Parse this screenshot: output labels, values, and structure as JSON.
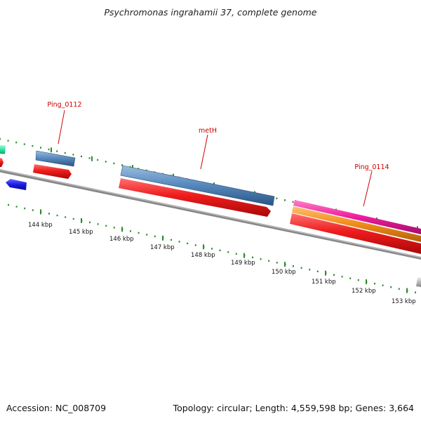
{
  "title": "Psychromonas ingrahamii 37, complete genome",
  "footer": {
    "accession": "Accession: NC_008709",
    "summary": "Topology: circular; Length: 4,559,598 bp; Genes: 3,664"
  },
  "colors": {
    "backbone": "#8a8a8a",
    "tick": "#2e8b2e",
    "label": "#cc0000",
    "cds_red": "#ee1c1c",
    "steelblue": "#4f81b5",
    "magenta": "#ee1c9c",
    "orange": "#f08c1a",
    "blue": "#1a1ae6",
    "green": "#2ee6a0",
    "gray": "#bbbbbb"
  },
  "scale_labels": [
    {
      "label": "144 kbp",
      "kbp": 144
    },
    {
      "label": "145 kbp",
      "kbp": 145
    },
    {
      "label": "146 kbp",
      "kbp": 146
    },
    {
      "label": "147 kbp",
      "kbp": 147
    },
    {
      "label": "148 kbp",
      "kbp": 148
    },
    {
      "label": "149 kbp",
      "kbp": 149
    },
    {
      "label": "150 kbp",
      "kbp": 150
    },
    {
      "label": "151 kbp",
      "kbp": 151
    },
    {
      "label": "152 kbp",
      "kbp": 152
    },
    {
      "label": "153 kbp",
      "kbp": 153
    }
  ],
  "gene_labels": [
    "Ping_0112",
    "metH",
    "Ping_0114"
  ]
}
